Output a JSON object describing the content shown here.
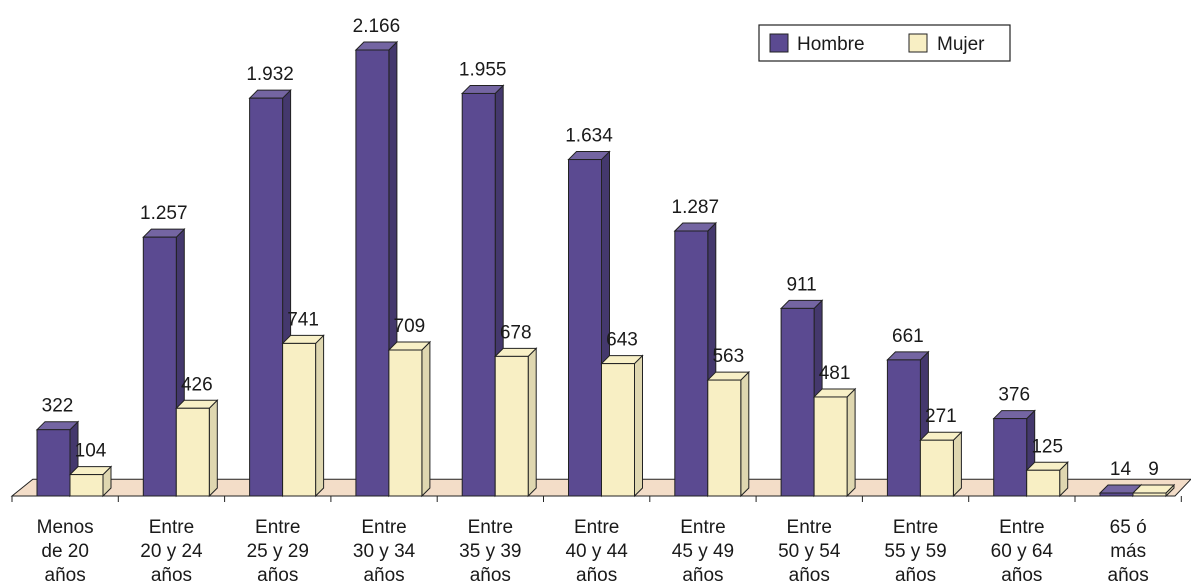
{
  "chart_data": {
    "type": "bar",
    "categories": [
      [
        "Menos",
        "de 20",
        "años"
      ],
      [
        "Entre",
        "20 y 24",
        "años"
      ],
      [
        "Entre",
        "25 y 29",
        "años"
      ],
      [
        "Entre",
        "30 y 34",
        "años"
      ],
      [
        "Entre",
        "35 y 39",
        "años"
      ],
      [
        "Entre",
        "40 y 44",
        "años"
      ],
      [
        "Entre",
        "45 y 49",
        "años"
      ],
      [
        "Entre",
        "50 y 54",
        "años"
      ],
      [
        "Entre",
        "55 y 59",
        "años"
      ],
      [
        "Entre",
        "60 y 64",
        "años"
      ],
      [
        "65 ó",
        "más",
        "años"
      ]
    ],
    "series": [
      {
        "name": "Hombre",
        "color": "#5b4a91",
        "values": [
          322,
          1257,
          1932,
          2166,
          1955,
          1634,
          1287,
          911,
          661,
          376,
          14
        ],
        "labels": [
          "322",
          "1.257",
          "1.932",
          "2.166",
          "1.955",
          "1.634",
          "1.287",
          "911",
          "661",
          "376",
          "14"
        ]
      },
      {
        "name": "Mujer",
        "color": "#f8efc4",
        "values": [
          104,
          426,
          741,
          709,
          678,
          643,
          563,
          481,
          271,
          125,
          9
        ],
        "labels": [
          "104",
          "426",
          "741",
          "709",
          "678",
          "643",
          "563",
          "481",
          "271",
          "125",
          "9"
        ]
      }
    ],
    "legend": {
      "placement": "top-right"
    },
    "grid": false,
    "floor_color": "#f3ddc8"
  }
}
